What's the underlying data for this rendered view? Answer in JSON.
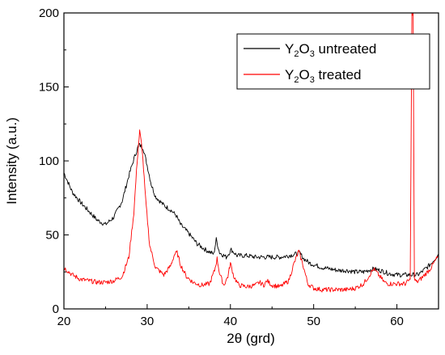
{
  "chart_data": {
    "type": "line",
    "xlabel": "2θ (grd)",
    "ylabel": "Intensity (a.u.)",
    "xlim": [
      20,
      65
    ],
    "ylim": [
      0,
      200
    ],
    "x_ticks": [
      20,
      30,
      40,
      50,
      60
    ],
    "y_ticks": [
      0,
      50,
      100,
      150,
      200
    ],
    "x_tick_labels": [
      "20",
      "30",
      "40",
      "50",
      "60"
    ],
    "y_tick_labels": [
      "0",
      "50",
      "100",
      "150",
      "200"
    ],
    "grid": false,
    "legend_position": "top-right",
    "legend_entries": [
      {
        "pre": "Y",
        "sub1": "2",
        "mid": "O",
        "sub2": "3",
        "post": " untreated",
        "color": "#000000"
      },
      {
        "pre": "Y",
        "sub1": "2",
        "mid": "O",
        "sub2": "3",
        "post": " treated",
        "color": "#ff0000"
      }
    ],
    "series": [
      {
        "color": "#000000",
        "x": [
          20,
          21,
          22,
          23,
          24,
          25,
          26,
          27,
          27.8,
          28.5,
          29,
          29.5,
          30,
          30.5,
          31,
          32,
          32.8,
          33.5,
          34,
          35,
          36,
          37,
          38,
          38.3,
          38.7,
          39.5,
          40.1,
          40.8,
          42,
          43,
          44,
          45,
          46,
          47,
          47.8,
          48.3,
          48.8,
          49.5,
          50,
          51,
          52,
          53,
          54,
          55,
          56,
          56.5,
          57.2,
          58,
          59,
          60,
          61,
          62,
          62.5,
          63,
          64,
          65
        ],
        "y": [
          92,
          79,
          72,
          66,
          60,
          57,
          62,
          73,
          90,
          103,
          111,
          109,
          97,
          84,
          76,
          70,
          67,
          63,
          57,
          51,
          44,
          40,
          37,
          47,
          38,
          35,
          40,
          36,
          36,
          35,
          35,
          35,
          35,
          36,
          37,
          38,
          34,
          31,
          30,
          28,
          27,
          26,
          26,
          25,
          25,
          26,
          27,
          26,
          24,
          23,
          23,
          23,
          23,
          25,
          30,
          37
        ]
      },
      {
        "color": "#ff0000",
        "x": [
          20,
          21,
          22,
          23,
          24,
          25,
          26,
          27,
          27.8,
          28.4,
          28.8,
          29.1,
          29.4,
          29.8,
          30.3,
          31,
          32,
          32.8,
          33.3,
          33.6,
          34,
          34.7,
          35.5,
          36.5,
          37.5,
          38.1,
          38.4,
          38.7,
          39.2,
          39.7,
          40,
          40.4,
          41,
          42,
          43,
          43.5,
          44,
          44.4,
          45,
          46,
          47,
          47.6,
          48.2,
          48.7,
          49.3,
          50,
          51,
          52,
          53,
          54,
          55,
          56,
          56.6,
          57.2,
          57.8,
          58.5,
          59,
          60,
          61,
          61.6,
          61.8,
          61.95,
          62.1,
          62.4,
          63,
          64,
          65
        ],
        "y": [
          28,
          23,
          20,
          19,
          18,
          18,
          19,
          22,
          35,
          65,
          100,
          120,
          108,
          75,
          43,
          28,
          23,
          29,
          37,
          38,
          30,
          22,
          18,
          16,
          17,
          26,
          34,
          24,
          16,
          22,
          31,
          22,
          16,
          15,
          16,
          18,
          16,
          19,
          16,
          15,
          19,
          30,
          39,
          30,
          17,
          14,
          13,
          13,
          13,
          13,
          14,
          17,
          22,
          27,
          23,
          18,
          17,
          17,
          17,
          20,
          200,
          200,
          20,
          18,
          21,
          27,
          36
        ]
      }
    ]
  }
}
